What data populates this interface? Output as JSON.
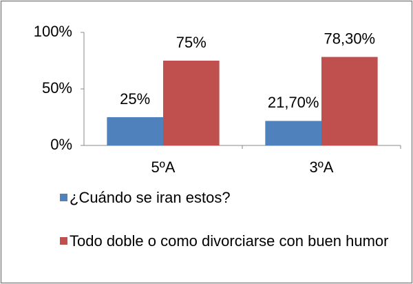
{
  "chart_data": {
    "type": "bar",
    "categories": [
      "5ºA",
      "3ºA"
    ],
    "series": [
      {
        "name": "¿Cuándo se iran estos?",
        "color": "#4f81bd",
        "values": [
          25,
          21.7
        ],
        "value_labels": [
          "25%",
          "21,70%"
        ]
      },
      {
        "name": "Todo doble o como divorciarse con buen humor",
        "color": "#c0504d",
        "values": [
          75,
          78.3
        ],
        "value_labels": [
          "75%",
          "78,30%"
        ]
      }
    ],
    "ylim": [
      0,
      100
    ],
    "yticks": [
      {
        "value": 0,
        "label": "0%"
      },
      {
        "value": 50,
        "label": "50%"
      },
      {
        "value": 100,
        "label": "100%"
      }
    ],
    "grid": false
  }
}
